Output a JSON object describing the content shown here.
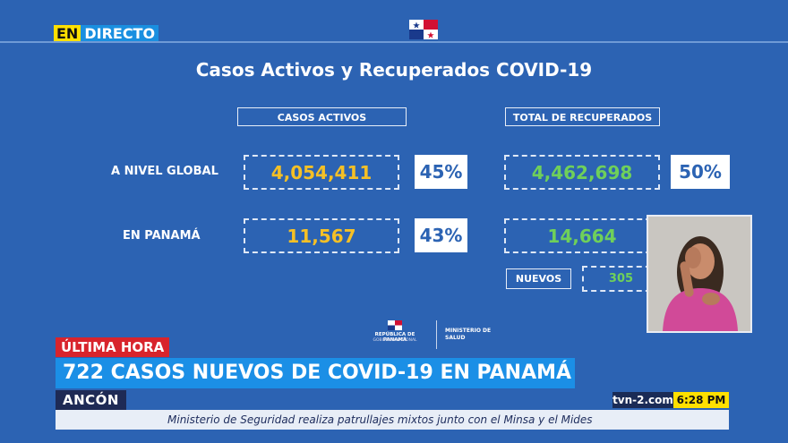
{
  "live_badge": {
    "en": "EN",
    "directo": "DIRECTO"
  },
  "slide": {
    "title": "Casos Activos y Recuperados COVID-19",
    "headers": {
      "active": "CASOS ACTIVOS",
      "recovered": "TOTAL DE RECUPERADOS"
    },
    "rows": [
      {
        "label": "A NIVEL GLOBAL",
        "active": "4,054,411",
        "active_pct": "45%",
        "recovered": "4,462,698",
        "recovered_pct": "50%"
      },
      {
        "label": "EN PANAMÁ",
        "active": "11,567",
        "active_pct": "43%",
        "recovered": "14,664"
      }
    ],
    "nuevos": {
      "label": "NUEVOS",
      "value": "305"
    },
    "footer_logo": {
      "republica": "REPÚBLICA DE PANAMÁ",
      "gobierno": "GOBIERNO NACIONAL",
      "ministerio": "MINISTERIO DE SALUD"
    }
  },
  "lower_third": {
    "breaking": "ÚLTIMA HORA",
    "headline": "722 CASOS NUEVOS DE COVID-19 EN PANAMÁ",
    "location": "ANCÓN",
    "ticker": "Ministerio de Seguridad realiza patrullajes mixtos junto con el Minsa y el Mides",
    "channel": "tvn-2.com",
    "time": "6:28 PM"
  },
  "colors": {
    "background": "#2c63b3",
    "active_value": "#f5c026",
    "recovered_value": "#6fd05a",
    "breaking": "#d8242c",
    "headline": "#1b8fe6",
    "clock": "#ffe000"
  }
}
